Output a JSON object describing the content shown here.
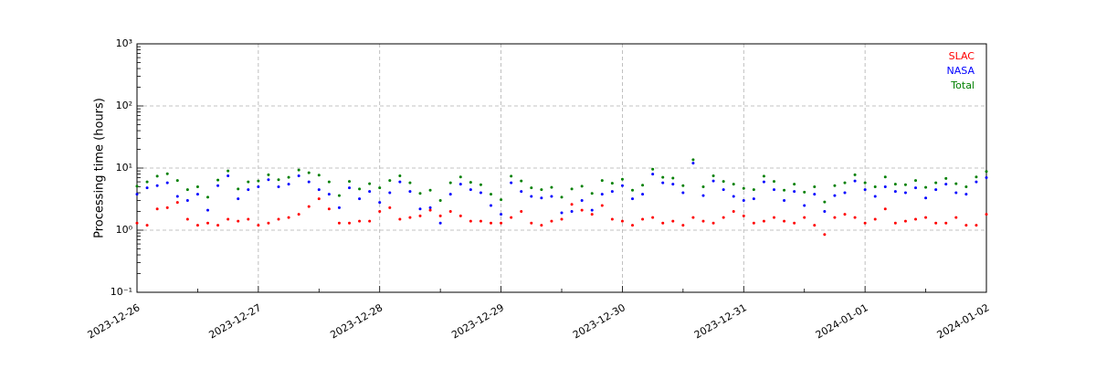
{
  "chart_data": {
    "type": "scatter",
    "y_label": "Processing time (hours)",
    "log_y": true,
    "grid": true,
    "legend": "upper right",
    "xlim": [
      "2023-12-26",
      "2024-01-02"
    ],
    "xticks": [
      "2023-12-26",
      "2023-12-27",
      "2023-12-28",
      "2023-12-29",
      "2023-12-30",
      "2023-12-31",
      "2024-01-01",
      "2024-01-02"
    ],
    "ylim": [
      0.1,
      1000
    ],
    "yticks": [
      {
        "value": 0.1,
        "label": "10⁻¹"
      },
      {
        "value": 1,
        "label": "10⁰"
      },
      {
        "value": 10,
        "label": "10¹"
      },
      {
        "value": 100,
        "label": "10²"
      },
      {
        "value": 1000,
        "label": "10³"
      }
    ],
    "x": [
      "2023-12-26 00:00",
      "2023-12-26 02:00",
      "2023-12-26 04:00",
      "2023-12-26 06:00",
      "2023-12-26 08:00",
      "2023-12-26 10:00",
      "2023-12-26 12:00",
      "2023-12-26 14:00",
      "2023-12-26 16:00",
      "2023-12-26 18:00",
      "2023-12-26 20:00",
      "2023-12-26 22:00",
      "2023-12-27 00:00",
      "2023-12-27 02:00",
      "2023-12-27 04:00",
      "2023-12-27 06:00",
      "2023-12-27 08:00",
      "2023-12-27 10:00",
      "2023-12-27 12:00",
      "2023-12-27 14:00",
      "2023-12-27 16:00",
      "2023-12-27 18:00",
      "2023-12-27 20:00",
      "2023-12-27 22:00",
      "2023-12-28 00:00",
      "2023-12-28 02:00",
      "2023-12-28 04:00",
      "2023-12-28 06:00",
      "2023-12-28 08:00",
      "2023-12-28 10:00",
      "2023-12-28 12:00",
      "2023-12-28 14:00",
      "2023-12-28 16:00",
      "2023-12-28 18:00",
      "2023-12-28 20:00",
      "2023-12-28 22:00",
      "2023-12-29 00:00",
      "2023-12-29 02:00",
      "2023-12-29 04:00",
      "2023-12-29 06:00",
      "2023-12-29 08:00",
      "2023-12-29 10:00",
      "2023-12-29 12:00",
      "2023-12-29 14:00",
      "2023-12-29 16:00",
      "2023-12-29 18:00",
      "2023-12-29 20:00",
      "2023-12-29 22:00",
      "2023-12-30 00:00",
      "2023-12-30 02:00",
      "2023-12-30 04:00",
      "2023-12-30 06:00",
      "2023-12-30 08:00",
      "2023-12-30 10:00",
      "2023-12-30 12:00",
      "2023-12-30 14:00",
      "2023-12-30 16:00",
      "2023-12-30 18:00",
      "2023-12-30 20:00",
      "2023-12-30 22:00",
      "2023-12-31 00:00",
      "2023-12-31 02:00",
      "2023-12-31 04:00",
      "2023-12-31 06:00",
      "2023-12-31 08:00",
      "2023-12-31 10:00",
      "2023-12-31 12:00",
      "2023-12-31 14:00",
      "2023-12-31 16:00",
      "2023-12-31 18:00",
      "2023-12-31 20:00",
      "2023-12-31 22:00",
      "2024-01-01 00:00",
      "2024-01-01 02:00",
      "2024-01-01 04:00",
      "2024-01-01 06:00",
      "2024-01-01 08:00",
      "2024-01-01 10:00",
      "2024-01-01 12:00",
      "2024-01-01 14:00",
      "2024-01-01 16:00",
      "2024-01-01 18:00",
      "2024-01-01 20:00",
      "2024-01-01 22:00",
      "2024-01-02 00:00"
    ],
    "series": [
      {
        "name": "SLAC",
        "color": "#ff0000",
        "values": [
          1.3,
          1.2,
          2.2,
          2.3,
          2.8,
          1.5,
          1.2,
          1.3,
          1.2,
          1.5,
          1.4,
          1.5,
          1.2,
          1.3,
          1.5,
          1.6,
          1.8,
          2.4,
          3.2,
          2.2,
          1.3,
          1.3,
          1.4,
          1.4,
          2.0,
          2.3,
          1.5,
          1.6,
          1.7,
          2.1,
          1.7,
          2.0,
          1.7,
          1.4,
          1.4,
          1.3,
          1.3,
          1.6,
          2.0,
          1.3,
          1.2,
          1.4,
          1.5,
          2.6,
          2.1,
          1.8,
          2.5,
          1.5,
          1.4,
          1.2,
          1.5,
          1.6,
          1.3,
          1.4,
          1.2,
          1.6,
          1.4,
          1.3,
          1.6,
          2.0,
          1.7,
          1.3,
          1.4,
          1.6,
          1.4,
          1.3,
          1.6,
          1.2,
          0.85,
          1.6,
          1.8,
          1.6,
          1.3,
          1.5,
          2.2,
          1.3,
          1.4,
          1.5,
          1.6,
          1.3,
          1.3,
          1.6,
          1.2,
          1.2,
          1.8
        ]
      },
      {
        "name": "NASA",
        "color": "#0000ff",
        "values": [
          3.8,
          4.8,
          5.2,
          5.8,
          3.5,
          3.0,
          3.8,
          2.1,
          5.2,
          7.5,
          3.2,
          4.5,
          5.0,
          6.5,
          5.0,
          5.5,
          7.5,
          6.0,
          4.5,
          3.8,
          2.3,
          4.8,
          3.2,
          4.2,
          2.8,
          4.0,
          6.0,
          4.2,
          2.2,
          2.3,
          1.3,
          3.8,
          5.5,
          4.5,
          4.0,
          2.5,
          1.8,
          5.8,
          4.2,
          3.5,
          3.3,
          3.5,
          1.9,
          2.0,
          3.0,
          2.1,
          3.8,
          4.2,
          5.2,
          3.2,
          3.8,
          8.0,
          5.8,
          5.5,
          4.0,
          12.0,
          3.6,
          6.2,
          4.5,
          3.5,
          3.0,
          3.2,
          6.0,
          4.5,
          3.0,
          4.2,
          2.5,
          3.8,
          2.0,
          3.6,
          4.0,
          6.2,
          4.5,
          3.5,
          5.0,
          4.2,
          4.0,
          4.8,
          3.3,
          4.5,
          5.5,
          4.0,
          3.8,
          6.0,
          7.0
        ]
      },
      {
        "name": "Total",
        "color": "#008000",
        "values": [
          5.1,
          6.0,
          7.4,
          8.1,
          6.3,
          4.5,
          5.0,
          3.4,
          6.4,
          9.0,
          4.6,
          6.0,
          6.2,
          7.8,
          6.5,
          7.1,
          9.3,
          8.4,
          7.7,
          6.0,
          3.6,
          6.1,
          4.6,
          5.6,
          4.8,
          6.3,
          7.5,
          5.8,
          3.9,
          4.4,
          3.0,
          5.8,
          7.2,
          5.9,
          5.4,
          3.8,
          3.1,
          7.4,
          6.2,
          4.8,
          4.5,
          4.9,
          3.4,
          4.6,
          5.1,
          3.9,
          6.3,
          5.7,
          6.6,
          4.4,
          5.3,
          9.6,
          7.1,
          6.9,
          5.2,
          13.6,
          5.0,
          7.5,
          6.1,
          5.5,
          4.7,
          4.5,
          7.4,
          6.1,
          4.4,
          5.5,
          4.1,
          5.0,
          2.85,
          5.2,
          5.8,
          7.8,
          5.8,
          5.0,
          7.2,
          5.5,
          5.4,
          6.3,
          4.9,
          5.8,
          6.8,
          5.6,
          5.0,
          7.2,
          8.8
        ]
      }
    ]
  }
}
